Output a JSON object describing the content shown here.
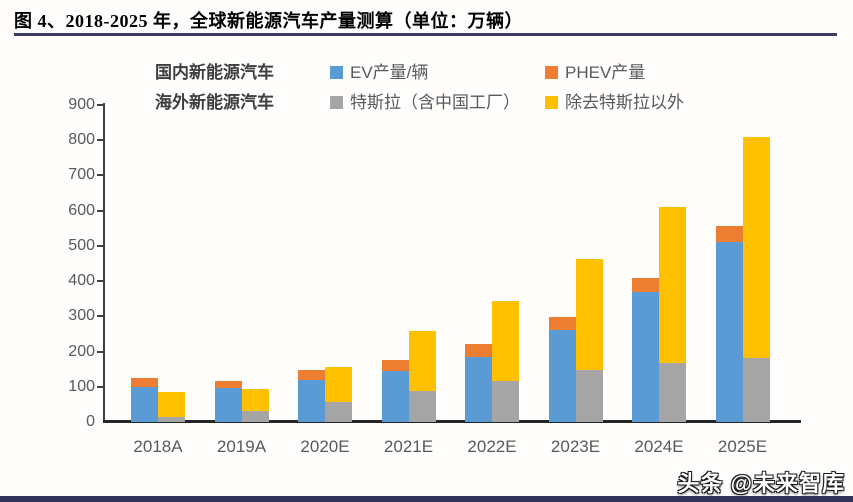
{
  "header": {
    "title": "图 4、2018-2025 年，全球新能源汽车产量测算（单位：万辆）"
  },
  "legend": {
    "row1_label": "国内新能源汽车",
    "row2_label": "海外新能源汽车",
    "items": [
      {
        "label": "EV产量/辆",
        "color": "#5b9bd5"
      },
      {
        "label": "PHEV产量",
        "color": "#ed7d31"
      },
      {
        "label": "特斯拉（含中国工厂）",
        "color": "#a5a5a5"
      },
      {
        "label": "除去特斯拉以外",
        "color": "#ffc000"
      }
    ]
  },
  "watermark": "头条 @未来智库",
  "colors": {
    "ev_blue": "#5b9bd5",
    "phev_orange": "#ed7d31",
    "tesla_gray": "#a5a5a5",
    "non_tesla_yellow": "#ffc000",
    "rule_navy": "#31315a"
  },
  "chart_data": {
    "type": "bar",
    "stacked": true,
    "unit": "万辆",
    "title": "图 4、2018-2025 年，全球新能源汽车产量测算（单位：万辆）",
    "xlabel": "",
    "ylabel": "",
    "ylim": [
      0,
      900
    ],
    "ytick_interval": 100,
    "grid": false,
    "legend_position": "top",
    "categories": [
      "2018A",
      "2019A",
      "2020E",
      "2021E",
      "2022E",
      "2023E",
      "2024E",
      "2025E"
    ],
    "bar_pairs_note": "each category shows two stacked bars: domestic China NEV (EV+PHEV) and overseas NEV (Tesla + non-Tesla)",
    "series": [
      {
        "name": "EV产量/辆",
        "stack": "domestic",
        "color": "#5b9bd5",
        "values": [
          98,
          97,
          120,
          145,
          185,
          262,
          368,
          510
        ]
      },
      {
        "name": "PHEV产量",
        "stack": "domestic",
        "color": "#ed7d31",
        "values": [
          27,
          20,
          28,
          32,
          37,
          36,
          42,
          46
        ]
      },
      {
        "name": "特斯拉（含中国工厂）",
        "stack": "overseas",
        "color": "#a5a5a5",
        "values": [
          15,
          30,
          58,
          87,
          116,
          148,
          168,
          181
        ]
      },
      {
        "name": "除去特斯拉以外",
        "stack": "overseas",
        "color": "#ffc000",
        "values": [
          70,
          65,
          98,
          170,
          228,
          316,
          442,
          629
        ]
      }
    ]
  }
}
